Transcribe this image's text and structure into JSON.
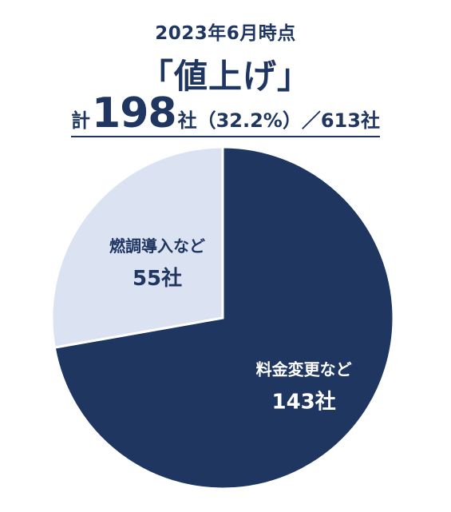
{
  "header": {
    "date": "2023年6月時点",
    "title": "「値上げ」",
    "summary_prefix": "計",
    "summary_count": "198",
    "summary_rest": "社（32.2%）／613社"
  },
  "chart_data": {
    "type": "pie",
    "title": "「値上げ」",
    "slices": [
      {
        "label": "料金変更など",
        "value": 143,
        "value_label": "143社",
        "color": "#1f3660",
        "text_color": "#ffffff"
      },
      {
        "label": "燃調導入など",
        "value": 55,
        "value_label": "55社",
        "color": "#dbe3f3",
        "text_color": "#1f3660"
      }
    ],
    "total": 198,
    "start_angle_deg": 0,
    "direction": "clockwise"
  }
}
